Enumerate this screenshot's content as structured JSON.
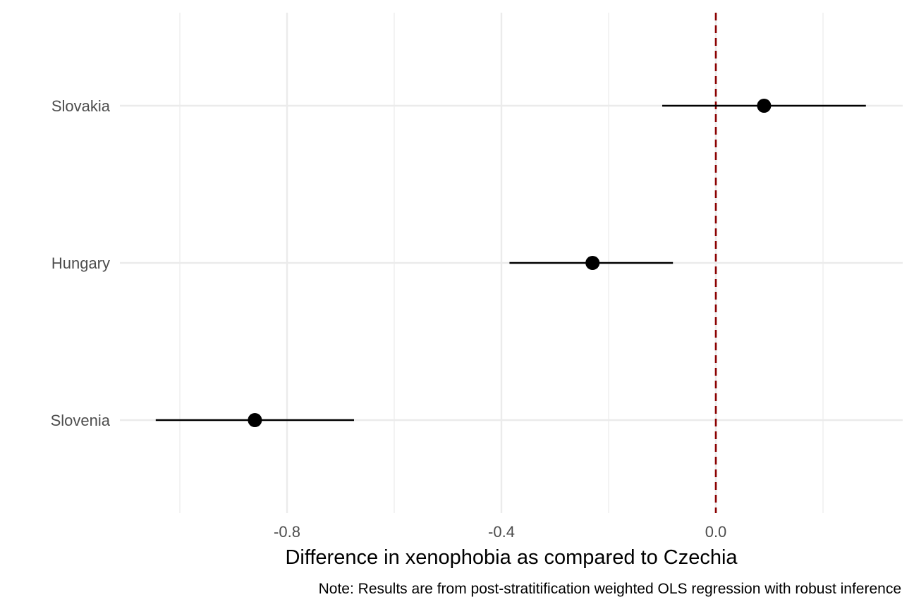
{
  "chart_data": {
    "type": "scatter",
    "subtype": "coefficient-plot",
    "xlabel": "Difference in xenophobia as compared to Czechia",
    "caption": "Note: Results are from post-stratitification weighted OLS regression with robust inference",
    "categories": [
      "Slovakia",
      "Hungary",
      "Slovenia"
    ],
    "points": [
      {
        "label": "Slovakia",
        "estimate": 0.09,
        "ci_low": -0.1,
        "ci_high": 0.28
      },
      {
        "label": "Hungary",
        "estimate": -0.23,
        "ci_low": -0.385,
        "ci_high": -0.08
      },
      {
        "label": "Slovenia",
        "estimate": -0.86,
        "ci_low": -1.045,
        "ci_high": -0.675
      }
    ],
    "xlim": [
      -1.1,
      0.35
    ],
    "x_ticks": [
      -0.8,
      -0.4,
      0.0
    ],
    "x_tick_labels": [
      "-0.8",
      "-0.4",
      "0.0"
    ],
    "reference_line": {
      "x": 0.0,
      "style": "dashed",
      "color": "#8b0000"
    },
    "colors": {
      "point": "#000000",
      "grid": "#ebebeb",
      "tick_text": "#4d4d4d"
    },
    "grid": true,
    "legend": "none"
  }
}
